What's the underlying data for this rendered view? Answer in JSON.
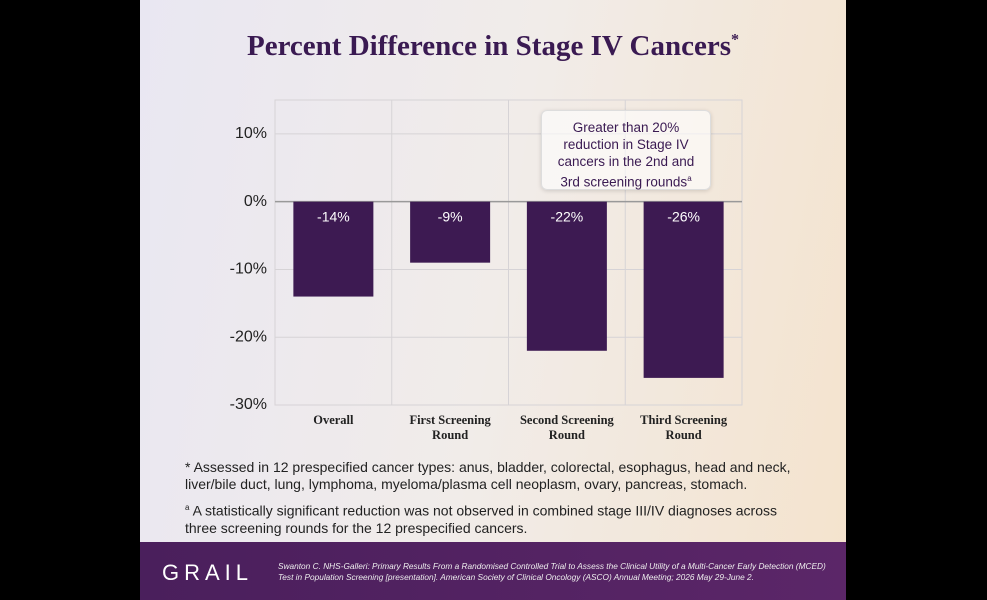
{
  "chart_data": {
    "type": "bar",
    "title": "Percent Difference in Stage IV Cancers",
    "title_mark": "*",
    "categories": [
      "Overall",
      "First Screening Round",
      "Second Screening Round",
      "Third Screening Round"
    ],
    "values": [
      -14,
      -9,
      -22,
      -26
    ],
    "value_labels": [
      "-14%",
      "-9%",
      "-22%",
      "-26%"
    ],
    "color": "#3d1a52",
    "ylim": [
      -30,
      15
    ],
    "yticks": [
      {
        "value": 10,
        "label": "10%"
      },
      {
        "value": 0,
        "label": "0%"
      },
      {
        "value": -10,
        "label": "-10%"
      },
      {
        "value": -20,
        "label": "-20%"
      },
      {
        "value": -30,
        "label": "-30%"
      }
    ],
    "grid": true,
    "annotation": "Greater than 20% reduction in Stage IV cancers in the 2nd and 3rd screening rounds",
    "annotation_mark": "a"
  },
  "footnotes": [
    {
      "mark": "*",
      "text": "Assessed in 12 prespecified cancer types: anus, bladder, colorectal, esophagus, head and neck, liver/bile duct, lung, lymphoma, myeloma/plasma cell neoplasm, ovary, pancreas, stomach."
    },
    {
      "mark": "a",
      "text": "A statistically significant reduction was not observed in combined stage III/IV diagnoses across three screening rounds for the 12 prespecified cancers."
    }
  ],
  "footer": {
    "logo": "GRAIL",
    "citation": "Swanton C. NHS-Galleri: Primary Results From a Randomised Controlled Trial to Assess the Clinical Utility of a Multi-Cancer Early Detection (MCED) Test in Population Screening [presentation]. American Society of Clinical Oncology (ASCO) Annual Meeting; 2026 May 29-June 2."
  }
}
